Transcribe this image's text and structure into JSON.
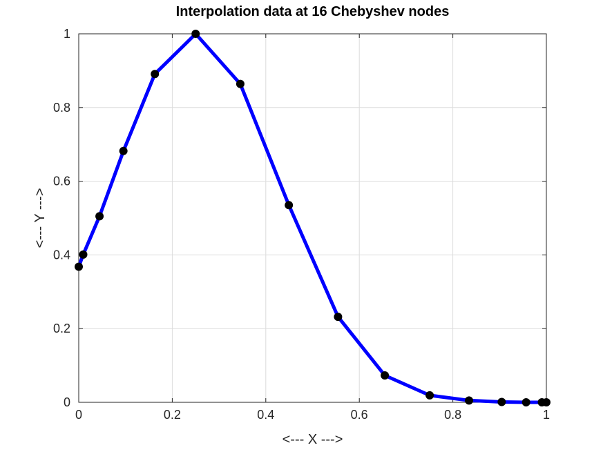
{
  "chart_data": {
    "type": "line",
    "title": "Interpolation data at 16 Chebyshev nodes",
    "xlabel": "<--- X --->",
    "ylabel": "<--- Y --->",
    "xlim": [
      0,
      1
    ],
    "ylim": [
      0,
      1
    ],
    "xticks": [
      "0",
      "0.2",
      "0.4",
      "0.6",
      "0.8",
      "1"
    ],
    "yticks": [
      "0",
      "0.2",
      "0.4",
      "0.6",
      "0.8",
      "1"
    ],
    "grid": true,
    "line_color": "#0000ff",
    "marker_color": "#000000",
    "series": [
      {
        "x": [
          0.0,
          0.0096,
          0.0444,
          0.0955,
          0.1628,
          0.25,
          0.3455,
          0.4493,
          0.5545,
          0.6545,
          0.7505,
          0.8346,
          0.9045,
          0.9567,
          0.9904,
          1.0
        ],
        "y": [
          0.368,
          0.401,
          0.505,
          0.682,
          0.891,
          1.0,
          0.864,
          0.535,
          0.232,
          0.073,
          0.019,
          0.005,
          0.001,
          0.0,
          0.0,
          0.0
        ]
      }
    ]
  }
}
